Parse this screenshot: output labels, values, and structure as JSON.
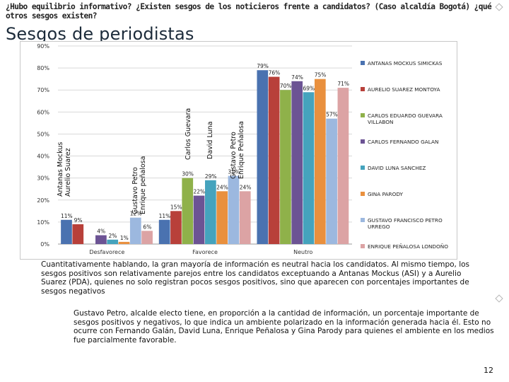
{
  "slide": {
    "question": "¿Hubo equilibrio informativo? ¿Existen sesgos de los noticieros frente a candidatos? (Caso alcaldía Bogotá) ¿qué otros sesgos existen?",
    "title": "Sesgos de periodistas",
    "paragraph1": "Cuantitativamente hablando, la gran mayoría de información es neutral hacia los candidatos. Al mismo tiempo, los sesgos positivos son relativamente parejos entre los candidatos exceptuando a Antanas Mockus (ASI) y a Aurelio Suarez (PDA), quienes no solo registran pocos sesgos positivos, sino que aparecen con porcentajes importantes de sesgos negativos",
    "paragraph2": "Gustavo Petro, alcalde electo tiene, en proporción a la cantidad de información, un porcentaje importante de sesgos positivos y negativos, lo que indica un ambiente polarizado en la información generada hacia él. Esto no ocurre con Fernando Galán, David Luna, Enrique Peñalosa y Gina Parody para quienes el ambiente en los medios fue parcialmente favorable.",
    "page_number": "12",
    "chart_annotations": [
      {
        "text": "Antanas Mockus\nAurelio Suarez",
        "name": "annotation-mockus-suarez"
      },
      {
        "text": "Gustavo Petro\nEnrique peñalosa",
        "name": "annotation-petro-penalosa-desfavorece"
      },
      {
        "text": "Carlos Guevara",
        "name": "annotation-carlos-guevara"
      },
      {
        "text": "David Luna",
        "name": "annotation-david-luna"
      },
      {
        "text": "Gustavo Petro\nEnrique Peñalosa",
        "name": "annotation-petro-penalosa-favorece"
      }
    ]
  },
  "chart_data": {
    "type": "bar",
    "categories": [
      "Desfavorece",
      "Favorece",
      "Neutro"
    ],
    "ylim": [
      0,
      90
    ],
    "y_ticks": [
      "0%",
      "10%",
      "20%",
      "30%",
      "40%",
      "50%",
      "60%",
      "70%",
      "80%",
      "90%"
    ],
    "value_suffix": "%",
    "grid": true,
    "legend_position": "right",
    "series": [
      {
        "name": "ANTANAS MOCKUS SIMICKAS",
        "color": "#4a72b0",
        "values": [
          11,
          11,
          79
        ],
        "labels": [
          "11%",
          "11%",
          "79%"
        ]
      },
      {
        "name": "AURELIO SUAREZ MONTOYA",
        "color": "#b8403a",
        "values": [
          9,
          15,
          76
        ],
        "labels": [
          "9%",
          "15%",
          "76%"
        ]
      },
      {
        "name": "CARLOS EDUARDO GUEVARA VILLABON",
        "color": "#8fb14a",
        "values": [
          0,
          30,
          70
        ],
        "labels": [
          "",
          "30%",
          "70%"
        ]
      },
      {
        "name": "CARLOS FERNANDO GALAN",
        "color": "#6c5394",
        "values": [
          4,
          22,
          74
        ],
        "labels": [
          "4%",
          "22%",
          "74%"
        ]
      },
      {
        "name": "DAVID LUNA SANCHEZ",
        "color": "#45a3bd",
        "values": [
          2,
          29,
          69
        ],
        "labels": [
          "2%",
          "29%",
          "69%"
        ]
      },
      {
        "name": "GINA PARODY",
        "color": "#e9903e",
        "values": [
          1,
          24,
          75
        ],
        "labels": [
          "1%",
          "24%",
          "75%"
        ]
      },
      {
        "name": "GUSTAVO FRANCISCO PETRO URREGO",
        "color": "#9cb8df",
        "values": [
          12,
          31,
          57
        ],
        "labels": [
          "12%",
          "31%",
          "57%"
        ]
      },
      {
        "name": "ENRIQUE PEÑALOSA LONDOÑO",
        "color": "#dca3a4",
        "values": [
          6,
          24,
          71
        ],
        "labels": [
          "6%",
          "24%",
          "71%"
        ]
      }
    ]
  }
}
